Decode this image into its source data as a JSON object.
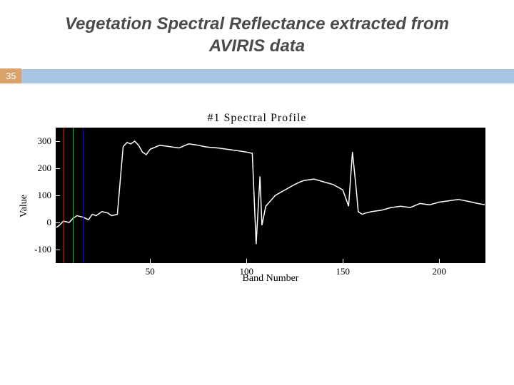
{
  "title_line1": "Vegetation Spectral Reflectance extracted from",
  "title_line2": "AVIRIS data",
  "title_fontsize": 24,
  "page_number": "35",
  "page_num_bg": "#d9a26b",
  "bar_color": "#a8c5e4",
  "chart": {
    "type": "line",
    "title": "#1 Spectral Profile",
    "title_fontsize": 16,
    "xlabel": "Band Number",
    "ylabel": "Value",
    "label_fontsize": 14,
    "background_color": "#000000",
    "line_color": "#ffffff",
    "line_width": 1.5,
    "xlim": [
      1,
      224
    ],
    "ylim": [
      -150,
      350
    ],
    "xticks": [
      50,
      100,
      150,
      200
    ],
    "yticks": [
      -100,
      0,
      100,
      200,
      300
    ],
    "vertical_markers": [
      {
        "x": 5,
        "color": "#ff0000"
      },
      {
        "x": 10,
        "color": "#00cc00"
      },
      {
        "x": 15,
        "color": "#0000ff"
      }
    ],
    "series": {
      "x": [
        1,
        3,
        5,
        8,
        10,
        12,
        15,
        18,
        20,
        22,
        25,
        28,
        30,
        33,
        36,
        38,
        40,
        42,
        44,
        46,
        48,
        50,
        55,
        60,
        65,
        70,
        75,
        78,
        80,
        85,
        90,
        95,
        100,
        103,
        105,
        107,
        108,
        110,
        115,
        120,
        125,
        128,
        130,
        135,
        140,
        145,
        150,
        153,
        155,
        157,
        158,
        160,
        162,
        165,
        170,
        175,
        180,
        185,
        190,
        195,
        200,
        205,
        210,
        215,
        220,
        224
      ],
      "y": [
        -20,
        -10,
        5,
        0,
        15,
        25,
        20,
        10,
        30,
        25,
        40,
        35,
        25,
        30,
        280,
        295,
        290,
        300,
        285,
        260,
        250,
        270,
        285,
        280,
        275,
        290,
        285,
        280,
        278,
        275,
        270,
        265,
        260,
        255,
        -80,
        170,
        -10,
        60,
        100,
        120,
        140,
        150,
        155,
        160,
        150,
        140,
        120,
        60,
        260,
        120,
        40,
        30,
        35,
        40,
        45,
        55,
        60,
        55,
        70,
        65,
        75,
        80,
        85,
        78,
        70,
        65
      ]
    }
  }
}
